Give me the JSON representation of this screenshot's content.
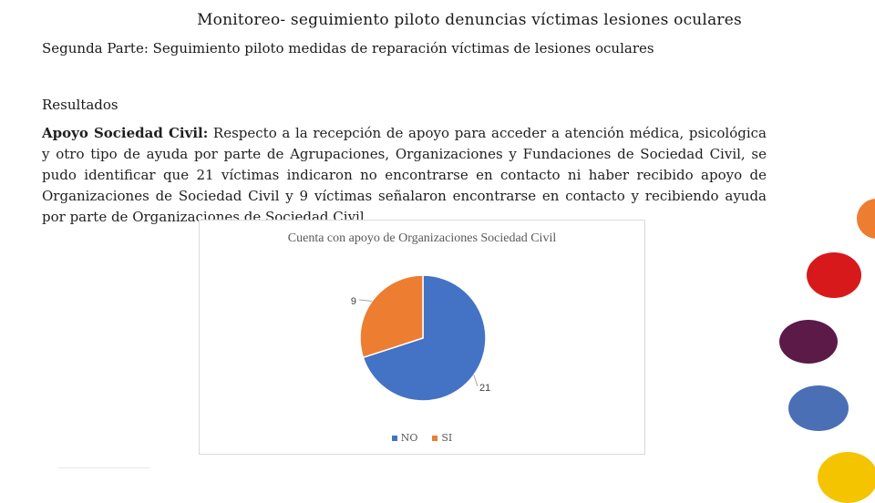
{
  "title": "Monitoreo- seguimiento piloto denuncias víctimas lesiones oculares",
  "subtitle": "Segunda Parte: Seguimiento piloto medidas de reparación víctimas de lesiones oculares",
  "section_heading": "Resultados",
  "paragraph": {
    "lead": "Apoyo Sociedad Civil:",
    "body": " Respecto a la recepción de apoyo para acceder a atención médica, psicológica y otro tipo de ayuda por parte de Agrupaciones, Organizaciones y Fundaciones de Sociedad Civil, se pudo identificar que 21 víctimas indicaron no encontrarse en contacto ni haber recibido apoyo de Organizaciones de Sociedad Civil y 9 víctimas señalaron encontrarse en contacto y recibiendo ayuda por parte de Organizaciones de Sociedad Civil."
  },
  "chart_data": {
    "type": "pie",
    "title": "Cuenta con apoyo de Organizaciones Sociedad Civil",
    "categories": [
      "NO",
      "SI"
    ],
    "values": [
      21,
      9
    ],
    "colors": [
      "#4472C4",
      "#ED7D31"
    ],
    "legend_position": "bottom",
    "data_labels": [
      "21",
      "9"
    ]
  },
  "decor": {
    "circle_colors": [
      "#ED7D31",
      "#D7191C",
      "#5B1A47",
      "#4A6FB5",
      "#F5C400"
    ]
  }
}
